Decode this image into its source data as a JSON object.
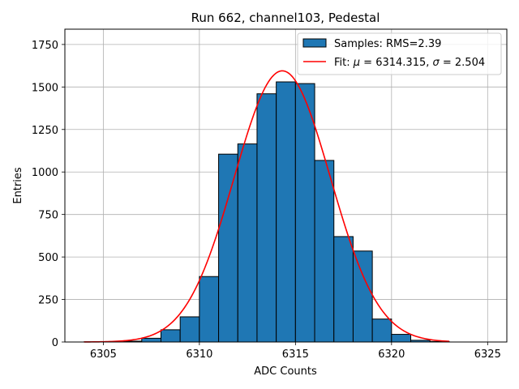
{
  "chart_data": {
    "type": "bar",
    "title": "Run 662, channel103, Pedestal",
    "xlabel": "ADC Counts",
    "ylabel": "Entries",
    "xlim": [
      6303.0,
      6326.0
    ],
    "ylim": [
      0,
      1840
    ],
    "xticks": [
      6305,
      6310,
      6315,
      6320,
      6325
    ],
    "yticks": [
      0,
      250,
      500,
      750,
      1000,
      1250,
      1500,
      1750
    ],
    "grid": true,
    "bin_width": 1,
    "histogram": {
      "name": "Samples: RMS=2.39",
      "color": "#1f77b4",
      "edge_color": "#000000",
      "bins": [
        {
          "left": 6304,
          "count": 1
        },
        {
          "left": 6305,
          "count": 2
        },
        {
          "left": 6306,
          "count": 5
        },
        {
          "left": 6307,
          "count": 22
        },
        {
          "left": 6308,
          "count": 72
        },
        {
          "left": 6309,
          "count": 148
        },
        {
          "left": 6310,
          "count": 385
        },
        {
          "left": 6311,
          "count": 1105
        },
        {
          "left": 6312,
          "count": 1165
        },
        {
          "left": 6313,
          "count": 1460
        },
        {
          "left": 6314,
          "count": 1530
        },
        {
          "left": 6315,
          "count": 1520
        },
        {
          "left": 6316,
          "count": 1068
        },
        {
          "left": 6317,
          "count": 620
        },
        {
          "left": 6318,
          "count": 535
        },
        {
          "left": 6319,
          "count": 135
        },
        {
          "left": 6320,
          "count": 45
        },
        {
          "left": 6321,
          "count": 10
        },
        {
          "left": 6322,
          "count": 3
        }
      ]
    },
    "fit": {
      "name": "Fit: μ = 6314.315, σ = 2.504",
      "name_prefix": "Fit: ",
      "mu_symbol": "μ",
      "mu_text": " = 6314.315, ",
      "sigma_symbol": "σ",
      "sigma_text": " = 2.504",
      "color": "#ff0000",
      "mu": 6314.315,
      "sigma": 2.504,
      "amplitude": 1595,
      "x_range": [
        6304,
        6323
      ]
    },
    "legend_position": "top-right"
  }
}
